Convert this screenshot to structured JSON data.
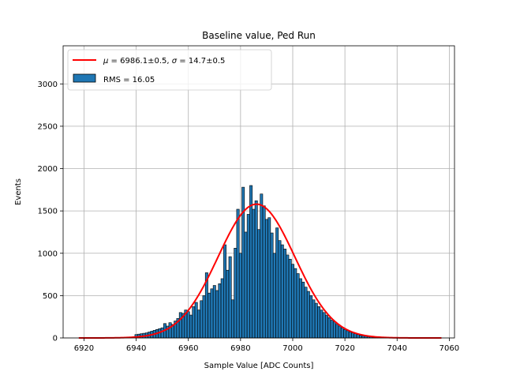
{
  "chart_data": {
    "type": "bar",
    "title": "Baseline value, Ped Run",
    "xlabel": "Sample Value [ADC Counts]",
    "ylabel": "Events",
    "xlim": [
      6912,
      7062
    ],
    "ylim": [
      0,
      3450
    ],
    "xticks": [
      6920,
      6940,
      6960,
      6980,
      7000,
      7020,
      7040,
      7060
    ],
    "yticks": [
      0,
      500,
      1000,
      1500,
      2000,
      2500,
      3000
    ],
    "grid": true,
    "legend_position": "top-left",
    "bin_width": 1,
    "series": [
      {
        "name": "RMS = 16.05",
        "kind": "histogram",
        "color": "#1f77b4",
        "edge_color": "#000000",
        "bins": [
          {
            "x": 6940,
            "value": 40
          },
          {
            "x": 6941,
            "value": 45
          },
          {
            "x": 6942,
            "value": 50
          },
          {
            "x": 6943,
            "value": 55
          },
          {
            "x": 6944,
            "value": 60
          },
          {
            "x": 6945,
            "value": 70
          },
          {
            "x": 6946,
            "value": 80
          },
          {
            "x": 6947,
            "value": 90
          },
          {
            "x": 6948,
            "value": 100
          },
          {
            "x": 6949,
            "value": 110
          },
          {
            "x": 6950,
            "value": 120
          },
          {
            "x": 6951,
            "value": 170
          },
          {
            "x": 6952,
            "value": 140
          },
          {
            "x": 6953,
            "value": 180
          },
          {
            "x": 6954,
            "value": 160
          },
          {
            "x": 6955,
            "value": 200
          },
          {
            "x": 6956,
            "value": 230
          },
          {
            "x": 6957,
            "value": 300
          },
          {
            "x": 6958,
            "value": 290
          },
          {
            "x": 6959,
            "value": 330
          },
          {
            "x": 6960,
            "value": 310
          },
          {
            "x": 6961,
            "value": 270
          },
          {
            "x": 6962,
            "value": 370
          },
          {
            "x": 6963,
            "value": 420
          },
          {
            "x": 6964,
            "value": 330
          },
          {
            "x": 6965,
            "value": 440
          },
          {
            "x": 6966,
            "value": 500
          },
          {
            "x": 6967,
            "value": 770
          },
          {
            "x": 6968,
            "value": 530
          },
          {
            "x": 6969,
            "value": 580
          },
          {
            "x": 6970,
            "value": 620
          },
          {
            "x": 6971,
            "value": 560
          },
          {
            "x": 6972,
            "value": 640
          },
          {
            "x": 6973,
            "value": 700
          },
          {
            "x": 6974,
            "value": 1100
          },
          {
            "x": 6975,
            "value": 800
          },
          {
            "x": 6976,
            "value": 960
          },
          {
            "x": 6977,
            "value": 450
          },
          {
            "x": 6978,
            "value": 1060
          },
          {
            "x": 6979,
            "value": 1520
          },
          {
            "x": 6980,
            "value": 1000
          },
          {
            "x": 6981,
            "value": 1780
          },
          {
            "x": 6982,
            "value": 1250
          },
          {
            "x": 6983,
            "value": 1460
          },
          {
            "x": 6984,
            "value": 1800
          },
          {
            "x": 6985,
            "value": 1520
          },
          {
            "x": 6986,
            "value": 1620
          },
          {
            "x": 6987,
            "value": 1280
          },
          {
            "x": 6988,
            "value": 1700
          },
          {
            "x": 6989,
            "value": 1560
          },
          {
            "x": 6990,
            "value": 1400
          },
          {
            "x": 6991,
            "value": 1420
          },
          {
            "x": 6992,
            "value": 1240
          },
          {
            "x": 6993,
            "value": 1000
          },
          {
            "x": 6994,
            "value": 1300
          },
          {
            "x": 6995,
            "value": 1150
          },
          {
            "x": 6996,
            "value": 1100
          },
          {
            "x": 6997,
            "value": 1050
          },
          {
            "x": 6998,
            "value": 980
          },
          {
            "x": 6999,
            "value": 930
          },
          {
            "x": 7000,
            "value": 870
          },
          {
            "x": 7001,
            "value": 820
          },
          {
            "x": 7002,
            "value": 760
          },
          {
            "x": 7003,
            "value": 700
          },
          {
            "x": 7004,
            "value": 660
          },
          {
            "x": 7005,
            "value": 600
          },
          {
            "x": 7006,
            "value": 550
          },
          {
            "x": 7007,
            "value": 500
          },
          {
            "x": 7008,
            "value": 450
          },
          {
            "x": 7009,
            "value": 410
          },
          {
            "x": 7010,
            "value": 370
          },
          {
            "x": 7011,
            "value": 330
          },
          {
            "x": 7012,
            "value": 300
          },
          {
            "x": 7013,
            "value": 270
          },
          {
            "x": 7014,
            "value": 240
          },
          {
            "x": 7015,
            "value": 210
          },
          {
            "x": 7016,
            "value": 190
          },
          {
            "x": 7017,
            "value": 160
          },
          {
            "x": 7018,
            "value": 140
          },
          {
            "x": 7019,
            "value": 120
          },
          {
            "x": 7020,
            "value": 100
          },
          {
            "x": 7021,
            "value": 85
          },
          {
            "x": 7022,
            "value": 70
          },
          {
            "x": 7023,
            "value": 60
          },
          {
            "x": 7024,
            "value": 50
          },
          {
            "x": 7025,
            "value": 40
          },
          {
            "x": 7026,
            "value": 30
          },
          {
            "x": 7027,
            "value": 25
          },
          {
            "x": 7028,
            "value": 20
          },
          {
            "x": 7029,
            "value": 15
          },
          {
            "x": 7030,
            "value": 12
          },
          {
            "x": 7031,
            "value": 10
          },
          {
            "x": 7032,
            "value": 8
          },
          {
            "x": 7033,
            "value": 6
          },
          {
            "x": 7034,
            "value": 5
          },
          {
            "x": 7035,
            "value": 4
          },
          {
            "x": 7036,
            "value": 3
          },
          {
            "x": 7037,
            "value": 2
          },
          {
            "x": 7038,
            "value": 2
          },
          {
            "x": 7039,
            "value": 1
          },
          {
            "x": 7040,
            "value": 1
          }
        ]
      },
      {
        "name": "$\\mu = 6986.1 \\pm 0.5$, $\\sigma = 14.7 \\pm 0.5$",
        "kind": "gaussian_fit",
        "color": "#ff0000",
        "mu": 6986.1,
        "sigma": 14.7,
        "amplitude": 1580,
        "x_range": [
          6918,
          7057
        ]
      }
    ],
    "legend": {
      "fit_label_parts": {
        "mu_symbol": "μ",
        "mu_text": " = 6986.1±0.5, ",
        "sigma_symbol": "σ",
        "sigma_text": " = 14.7±0.5"
      },
      "hist_label": "RMS = 16.05"
    }
  }
}
